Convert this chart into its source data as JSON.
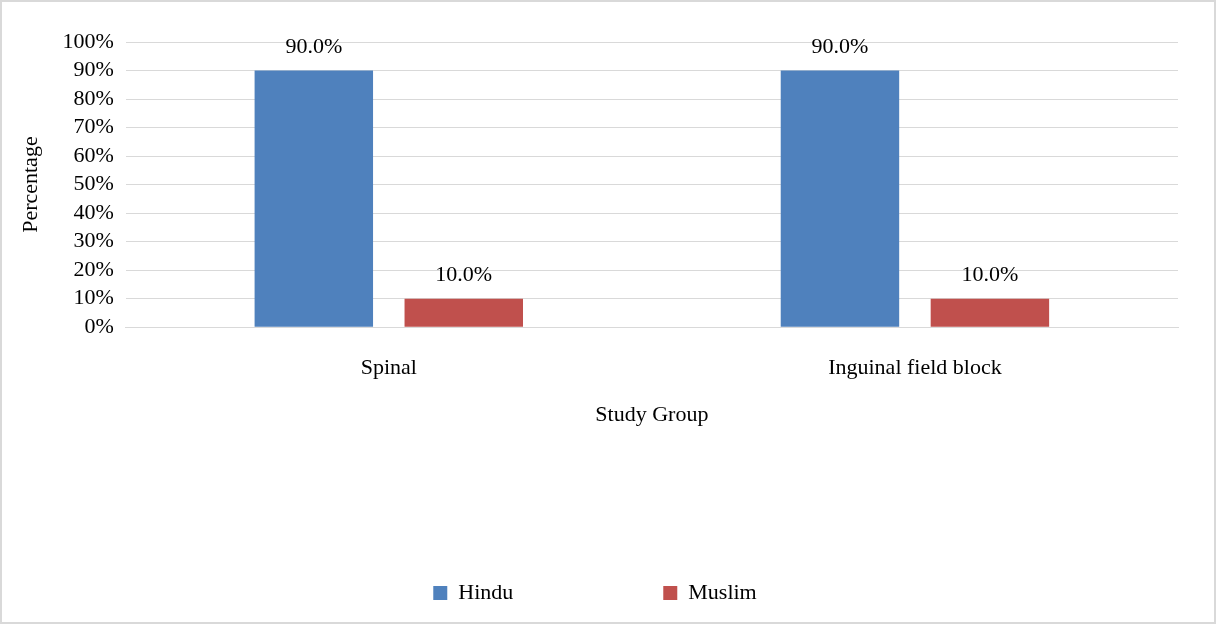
{
  "chart_data": {
    "type": "bar",
    "xlabel": "Study Group",
    "ylabel": "Percentage",
    "categories": [
      "Spinal",
      "Inguinal field block"
    ],
    "series": [
      {
        "name": "Hindu",
        "color": "#4f81bd",
        "values": [
          90,
          90
        ],
        "value_labels": [
          "90.0%",
          "90.0%"
        ]
      },
      {
        "name": "Muslim",
        "color": "#c0504d",
        "values": [
          10,
          10
        ],
        "value_labels": [
          "10.0%",
          "10.0%"
        ]
      }
    ],
    "ylim": [
      0,
      100
    ],
    "yticks": [
      {
        "value": 0,
        "label": "0%"
      },
      {
        "value": 10,
        "label": "10%"
      },
      {
        "value": 20,
        "label": "20%"
      },
      {
        "value": 30,
        "label": "30%"
      },
      {
        "value": 40,
        "label": "40%"
      },
      {
        "value": 50,
        "label": "50%"
      },
      {
        "value": 60,
        "label": "60%"
      },
      {
        "value": 70,
        "label": "70%"
      },
      {
        "value": 80,
        "label": "80%"
      },
      {
        "value": 90,
        "label": "90%"
      },
      {
        "value": 100,
        "label": "100%"
      }
    ],
    "grid": "y",
    "legend": "bottom"
  }
}
